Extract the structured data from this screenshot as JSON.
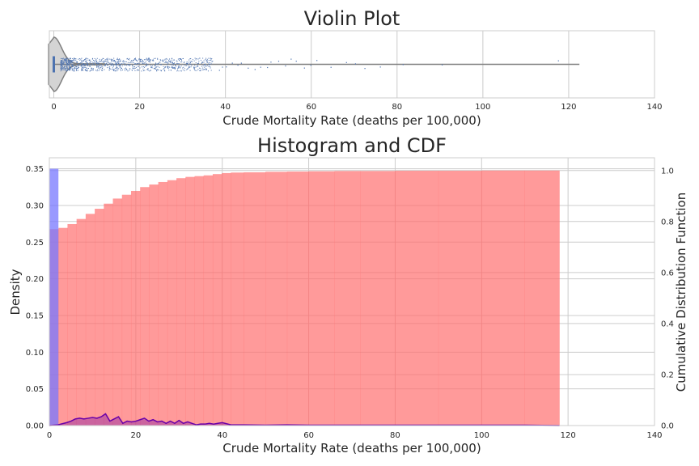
{
  "chart_data": [
    {
      "type": "violin",
      "title": "Violin Plot",
      "xlabel": "Crude Mortality Rate (deaths per 100,000)",
      "xlim": [
        0,
        140
      ],
      "xticks": [
        0,
        20,
        40,
        60,
        80,
        100,
        120,
        140
      ],
      "grid": true,
      "violin": {
        "whisker_range": [
          0,
          122.5
        ],
        "iqr": [
          0,
          0.3
        ],
        "strip_points_dense_range": [
          1.5,
          37
        ],
        "strip_points_sparse": [
          38.5,
          39.2,
          40.1,
          41.5,
          42.8,
          43.6,
          45.2,
          46.8,
          48.1,
          49.7,
          50.5,
          52.3,
          53.9,
          55.2,
          56.4,
          58.3,
          59.8,
          61.2,
          64.5,
          68.1,
          70.2,
          72.4,
          76.0,
          81.3,
          90.4,
          117.5
        ]
      }
    },
    {
      "type": "histogram+cdf",
      "title": "Histogram and CDF",
      "xlabel": "Crude Mortality Rate (deaths per 100,000)",
      "ylabel": "Density",
      "y2label": "Cumulative Distribution Function",
      "xlim": [
        0,
        140
      ],
      "ylim": [
        0,
        0.365
      ],
      "y2lim": [
        0,
        1.05
      ],
      "xticks": [
        0,
        20,
        40,
        60,
        80,
        100,
        120,
        140
      ],
      "yticks": [
        "0.00",
        "0.05",
        "0.10",
        "0.15",
        "0.20",
        "0.25",
        "0.30",
        "0.35"
      ],
      "y2ticks": [
        "0.0",
        "0.2",
        "0.4",
        "0.6",
        "0.8",
        "1.0"
      ],
      "histogram": {
        "color": "#7777ff",
        "bins": [
          {
            "x0": 0,
            "x1": 2.1,
            "density": 0.35
          }
        ]
      },
      "cdf": {
        "color": "#ff6f6f",
        "x": [
          0,
          2.1,
          4.2,
          6.3,
          8.4,
          10.5,
          12.6,
          14.7,
          16.8,
          18.9,
          21.0,
          23.1,
          25.2,
          27.3,
          29.4,
          31.5,
          33.6,
          35.7,
          37.8,
          39.9,
          42.0,
          45.0,
          50.0,
          55.0,
          60.0,
          66.0,
          72.0,
          80.0,
          90.0,
          100.0,
          110.0,
          118.0
        ],
        "y": [
          0.77,
          0.775,
          0.79,
          0.81,
          0.83,
          0.85,
          0.87,
          0.89,
          0.905,
          0.92,
          0.935,
          0.945,
          0.955,
          0.962,
          0.97,
          0.975,
          0.978,
          0.981,
          0.986,
          0.99,
          0.992,
          0.993,
          0.995,
          0.996,
          0.997,
          0.998,
          0.998,
          0.999,
          0.999,
          1.0,
          1.0,
          1.0
        ],
        "x_end": 118
      },
      "kde": {
        "color": "#6a00a8",
        "x": [
          0,
          2,
          4,
          5,
          6,
          7,
          8,
          9,
          10,
          11,
          12,
          13,
          14,
          15,
          16,
          17,
          18,
          19,
          20,
          21,
          22,
          23,
          24,
          25,
          26,
          27,
          28,
          29,
          30,
          31,
          32,
          33,
          34,
          35,
          36,
          37,
          38,
          39,
          40,
          42,
          45,
          50,
          55,
          60,
          70,
          80,
          90,
          100,
          110,
          118
        ],
        "y": [
          0,
          0.001,
          0.004,
          0.006,
          0.009,
          0.01,
          0.009,
          0.01,
          0.011,
          0.01,
          0.012,
          0.016,
          0.006,
          0.009,
          0.012,
          0.003,
          0.006,
          0.005,
          0.006,
          0.008,
          0.01,
          0.006,
          0.008,
          0.005,
          0.006,
          0.003,
          0.006,
          0.003,
          0.007,
          0.003,
          0.005,
          0.003,
          0.001,
          0.002,
          0.002,
          0.003,
          0.002,
          0.003,
          0.004,
          0.001,
          0.001,
          0.0005,
          0.001,
          0.0005,
          0.0005,
          0.0005,
          0.0005,
          0.0005,
          0.0005,
          0
        ]
      }
    }
  ]
}
